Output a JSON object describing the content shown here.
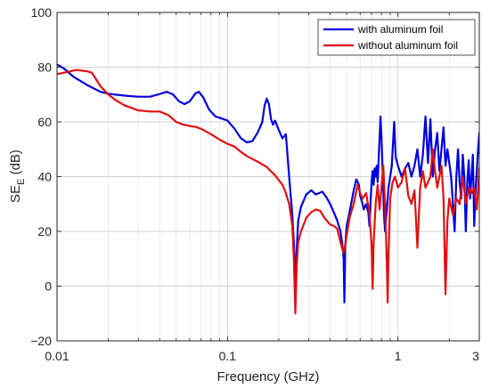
{
  "chart_data": {
    "type": "line",
    "xlabel": "Frequency (GHz)",
    "ylabel_main": "SE",
    "ylabel_sub": "E",
    "ylabel_unit": " (dB)",
    "xscale": "log",
    "xlim": [
      0.01,
      3
    ],
    "ylim": [
      -20,
      100
    ],
    "xticks": [
      0.01,
      0.1,
      1,
      3
    ],
    "xtick_labels": [
      "0.01",
      "0.1",
      "1",
      "3"
    ],
    "yticks": [
      -20,
      0,
      20,
      40,
      60,
      80,
      100
    ],
    "ytick_labels": [
      "−20",
      "0",
      "20",
      "40",
      "60",
      "80",
      "100"
    ],
    "grid": true,
    "legend_position": "top-right",
    "series": [
      {
        "name": "with aluminum foil",
        "color": "#0000dd",
        "points": [
          [
            0.01,
            81
          ],
          [
            0.011,
            79.5
          ],
          [
            0.0125,
            76.5
          ],
          [
            0.015,
            73.5
          ],
          [
            0.018,
            71
          ],
          [
            0.02,
            70.3
          ],
          [
            0.025,
            69.6
          ],
          [
            0.03,
            69.2
          ],
          [
            0.035,
            69.2
          ],
          [
            0.04,
            70.2
          ],
          [
            0.044,
            71
          ],
          [
            0.048,
            70
          ],
          [
            0.052,
            67.5
          ],
          [
            0.056,
            66.5
          ],
          [
            0.06,
            67.5
          ],
          [
            0.065,
            70.5
          ],
          [
            0.068,
            71
          ],
          [
            0.072,
            69
          ],
          [
            0.078,
            64.5
          ],
          [
            0.085,
            62
          ],
          [
            0.095,
            61
          ],
          [
            0.1,
            60.5
          ],
          [
            0.11,
            57.5
          ],
          [
            0.12,
            54
          ],
          [
            0.13,
            52.5
          ],
          [
            0.14,
            53
          ],
          [
            0.15,
            56
          ],
          [
            0.16,
            60
          ],
          [
            0.165,
            66
          ],
          [
            0.17,
            68.5
          ],
          [
            0.175,
            66.5
          ],
          [
            0.18,
            61
          ],
          [
            0.185,
            59
          ],
          [
            0.19,
            60.5
          ],
          [
            0.2,
            57
          ],
          [
            0.21,
            54
          ],
          [
            0.22,
            55.5
          ],
          [
            0.23,
            40
          ],
          [
            0.24,
            26
          ],
          [
            0.245,
            16
          ],
          [
            0.25,
            2
          ],
          [
            0.255,
            14
          ],
          [
            0.26,
            24
          ],
          [
            0.27,
            29
          ],
          [
            0.29,
            33.5
          ],
          [
            0.31,
            35
          ],
          [
            0.33,
            33.5
          ],
          [
            0.36,
            34.5
          ],
          [
            0.38,
            32.5
          ],
          [
            0.4,
            30
          ],
          [
            0.42,
            27
          ],
          [
            0.44,
            24
          ],
          [
            0.46,
            20
          ],
          [
            0.47,
            16
          ],
          [
            0.48,
            10
          ],
          [
            0.485,
            -6
          ],
          [
            0.49,
            14
          ],
          [
            0.5,
            22
          ],
          [
            0.52,
            27
          ],
          [
            0.55,
            35
          ],
          [
            0.57,
            39
          ],
          [
            0.59,
            37
          ],
          [
            0.6,
            33
          ],
          [
            0.62,
            30
          ],
          [
            0.63,
            28
          ],
          [
            0.65,
            30
          ],
          [
            0.67,
            27
          ],
          [
            0.68,
            22
          ],
          [
            0.69,
            30
          ],
          [
            0.7,
            38
          ],
          [
            0.71,
            42
          ],
          [
            0.72,
            37
          ],
          [
            0.73,
            43
          ],
          [
            0.74,
            40
          ],
          [
            0.75,
            44
          ],
          [
            0.76,
            38
          ],
          [
            0.77,
            46
          ],
          [
            0.79,
            62
          ],
          [
            0.8,
            55
          ],
          [
            0.81,
            45
          ],
          [
            0.82,
            35
          ],
          [
            0.83,
            25
          ],
          [
            0.84,
            20
          ],
          [
            0.86,
            28
          ],
          [
            0.88,
            36
          ],
          [
            0.9,
            40
          ],
          [
            0.92,
            44
          ],
          [
            0.95,
            60
          ],
          [
            0.97,
            47
          ],
          [
            1.0,
            44
          ],
          [
            1.05,
            40
          ],
          [
            1.1,
            43
          ],
          [
            1.15,
            45
          ],
          [
            1.2,
            40
          ],
          [
            1.25,
            44
          ],
          [
            1.3,
            50
          ],
          [
            1.35,
            40
          ],
          [
            1.4,
            48
          ],
          [
            1.45,
            62
          ],
          [
            1.5,
            45
          ],
          [
            1.55,
            61
          ],
          [
            1.6,
            40
          ],
          [
            1.65,
            50
          ],
          [
            1.7,
            56
          ],
          [
            1.75,
            42
          ],
          [
            1.8,
            50
          ],
          [
            1.85,
            58
          ],
          [
            1.9,
            44
          ],
          [
            1.95,
            50
          ],
          [
            2.0,
            45
          ],
          [
            2.05,
            40
          ],
          [
            2.1,
            30
          ],
          [
            2.15,
            20
          ],
          [
            2.2,
            40
          ],
          [
            2.25,
            50
          ],
          [
            2.3,
            38
          ],
          [
            2.35,
            32
          ],
          [
            2.4,
            48
          ],
          [
            2.45,
            40
          ],
          [
            2.5,
            20
          ],
          [
            2.55,
            38
          ],
          [
            2.6,
            46
          ],
          [
            2.65,
            32
          ],
          [
            2.7,
            40
          ],
          [
            2.75,
            48
          ],
          [
            2.8,
            22
          ],
          [
            2.85,
            35
          ],
          [
            2.9,
            42
          ],
          [
            2.95,
            50
          ],
          [
            3.0,
            56
          ]
        ]
      },
      {
        "name": "without aluminum foil",
        "color": "#e01010",
        "points": [
          [
            0.01,
            77.5
          ],
          [
            0.011,
            78
          ],
          [
            0.013,
            79
          ],
          [
            0.015,
            78.5
          ],
          [
            0.016,
            78
          ],
          [
            0.018,
            73
          ],
          [
            0.02,
            70
          ],
          [
            0.022,
            68
          ],
          [
            0.025,
            66
          ],
          [
            0.03,
            64.2
          ],
          [
            0.035,
            63.8
          ],
          [
            0.04,
            63.8
          ],
          [
            0.045,
            62.5
          ],
          [
            0.05,
            60
          ],
          [
            0.055,
            59
          ],
          [
            0.06,
            58.5
          ],
          [
            0.065,
            58.2
          ],
          [
            0.07,
            57.5
          ],
          [
            0.08,
            55.5
          ],
          [
            0.09,
            53.5
          ],
          [
            0.1,
            52
          ],
          [
            0.11,
            51
          ],
          [
            0.12,
            49
          ],
          [
            0.13,
            47.5
          ],
          [
            0.15,
            45.5
          ],
          [
            0.17,
            43.5
          ],
          [
            0.19,
            40.5
          ],
          [
            0.21,
            37
          ],
          [
            0.22,
            34
          ],
          [
            0.23,
            30
          ],
          [
            0.24,
            22
          ],
          [
            0.245,
            10
          ],
          [
            0.25,
            -10
          ],
          [
            0.255,
            8
          ],
          [
            0.26,
            16
          ],
          [
            0.27,
            20
          ],
          [
            0.29,
            25
          ],
          [
            0.31,
            27
          ],
          [
            0.33,
            28
          ],
          [
            0.35,
            27.5
          ],
          [
            0.37,
            25
          ],
          [
            0.4,
            22.5
          ],
          [
            0.42,
            22
          ],
          [
            0.44,
            21
          ],
          [
            0.46,
            16
          ],
          [
            0.47,
            14
          ],
          [
            0.48,
            12
          ],
          [
            0.49,
            15
          ],
          [
            0.52,
            25
          ],
          [
            0.55,
            30
          ],
          [
            0.58,
            37
          ],
          [
            0.6,
            34
          ],
          [
            0.62,
            32
          ],
          [
            0.65,
            34
          ],
          [
            0.68,
            27
          ],
          [
            0.7,
            15
          ],
          [
            0.71,
            -1
          ],
          [
            0.72,
            16
          ],
          [
            0.74,
            30
          ],
          [
            0.76,
            37
          ],
          [
            0.78,
            28
          ],
          [
            0.8,
            36
          ],
          [
            0.82,
            44
          ],
          [
            0.84,
            30
          ],
          [
            0.86,
            8
          ],
          [
            0.87,
            -6
          ],
          [
            0.88,
            12
          ],
          [
            0.9,
            32
          ],
          [
            0.93,
            38
          ],
          [
            0.96,
            40
          ],
          [
            1.0,
            36
          ],
          [
            1.05,
            38
          ],
          [
            1.1,
            43
          ],
          [
            1.15,
            33
          ],
          [
            1.2,
            30
          ],
          [
            1.25,
            35
          ],
          [
            1.3,
            14
          ],
          [
            1.35,
            36
          ],
          [
            1.4,
            42
          ],
          [
            1.45,
            36
          ],
          [
            1.5,
            38
          ],
          [
            1.55,
            40
          ],
          [
            1.6,
            50
          ],
          [
            1.65,
            42
          ],
          [
            1.7,
            36
          ],
          [
            1.75,
            40
          ],
          [
            1.8,
            44
          ],
          [
            1.85,
            32
          ],
          [
            1.9,
            -3
          ],
          [
            1.95,
            24
          ],
          [
            2.0,
            32
          ],
          [
            2.1,
            26
          ],
          [
            2.2,
            32
          ],
          [
            2.3,
            30
          ],
          [
            2.4,
            40
          ],
          [
            2.5,
            30
          ],
          [
            2.6,
            36
          ],
          [
            2.7,
            34
          ],
          [
            2.8,
            36
          ],
          [
            2.9,
            28
          ],
          [
            3.0,
            43
          ]
        ]
      }
    ]
  }
}
